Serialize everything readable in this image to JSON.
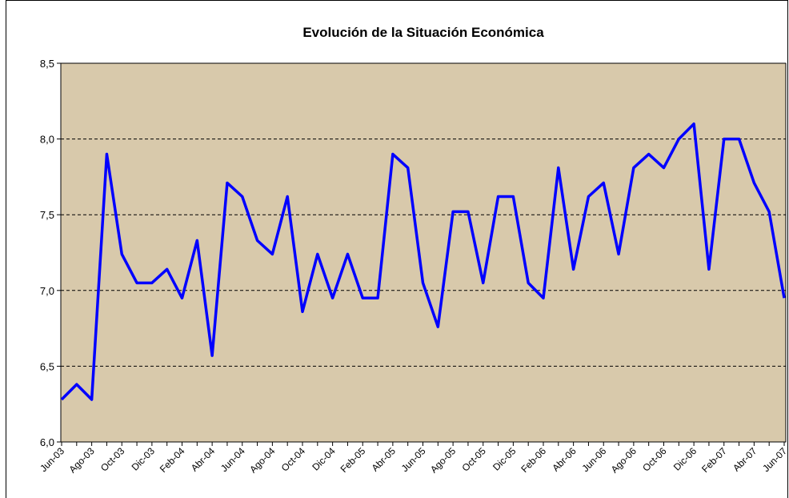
{
  "chart_data": {
    "type": "line",
    "title": "Evolución de la Situación Económica",
    "categories": [
      "Jun-03",
      null,
      "Ago-03",
      null,
      "Oct-03",
      null,
      "Dic-03",
      null,
      "Feb-04",
      null,
      "Abr-04",
      null,
      "Jun-04",
      null,
      "Ago-04",
      null,
      "Oct-04",
      null,
      "Dic-04",
      null,
      "Feb-05",
      null,
      "Abr-05",
      null,
      "Jun-05",
      null,
      "Ago-05",
      null,
      "Oct-05",
      null,
      "Dic-05",
      null,
      "Feb-06",
      null,
      "Abr-06",
      null,
      "Jun-06",
      null,
      "Ago-06",
      null,
      "Oct-06",
      null,
      "Dic-06",
      null,
      "Feb-07",
      null,
      "Abr-07",
      null,
      "Jun-07"
    ],
    "values": [
      6.28,
      6.38,
      6.28,
      7.9,
      7.24,
      7.05,
      7.05,
      7.14,
      6.95,
      7.33,
      6.57,
      7.71,
      7.62,
      7.33,
      7.24,
      7.62,
      6.86,
      7.24,
      6.95,
      7.24,
      6.95,
      6.95,
      7.9,
      7.81,
      7.05,
      6.76,
      7.52,
      7.52,
      7.05,
      7.62,
      7.62,
      7.05,
      6.95,
      7.81,
      7.14,
      7.62,
      7.71,
      7.24,
      7.81,
      7.9,
      7.81,
      8.0,
      8.1,
      7.14,
      8.0,
      8.0,
      7.71,
      7.52,
      6.95
    ],
    "color": "#0000ff",
    "ylim": [
      6.0,
      8.5
    ],
    "yticks": [
      {
        "value": 6.0,
        "label": "6,0"
      },
      {
        "value": 6.5,
        "label": "6,5"
      },
      {
        "value": 7.0,
        "label": "7,0"
      },
      {
        "value": 7.5,
        "label": "7,5"
      },
      {
        "value": 8.0,
        "label": "8,0"
      },
      {
        "value": 8.5,
        "label": "8,5"
      }
    ],
    "grid": true
  }
}
